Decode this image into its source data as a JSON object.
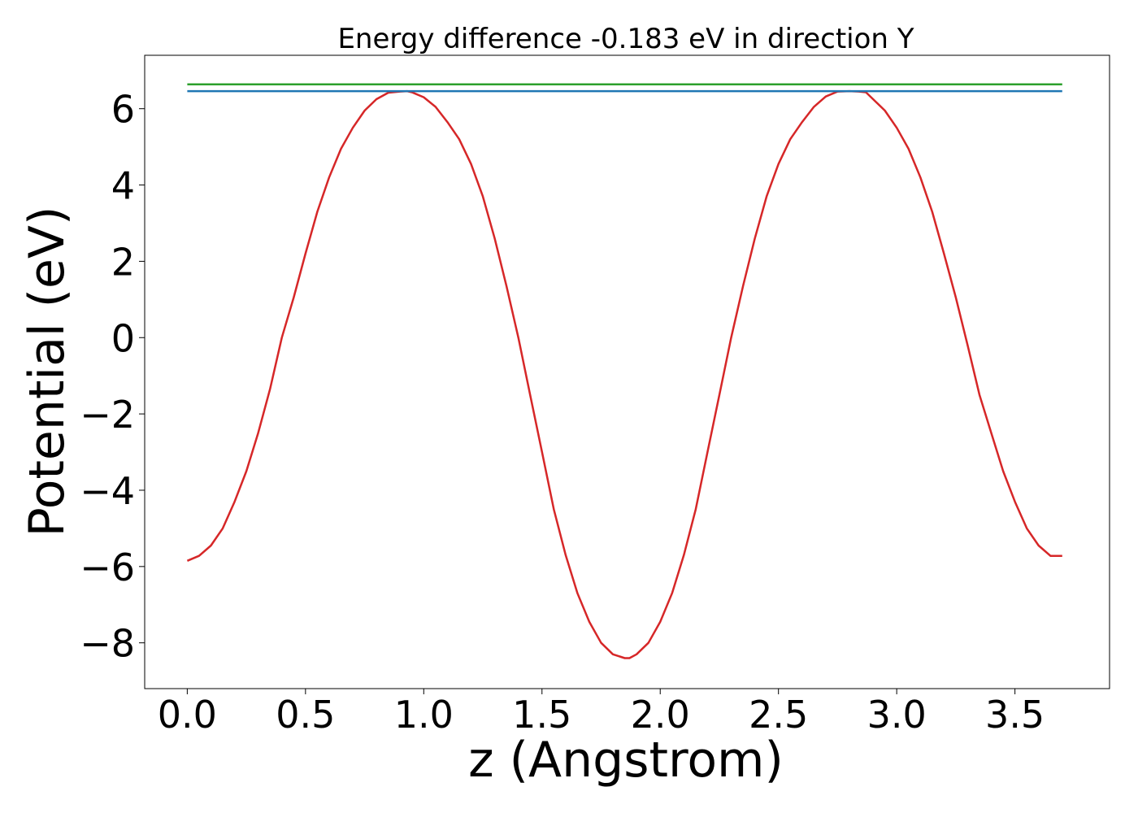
{
  "chart_data": {
    "type": "line",
    "title": "Energy difference -0.183 eV in direction Y",
    "xlabel": "z (Angstrom)",
    "ylabel": "Potential (eV)",
    "xlim": [
      -0.18,
      3.9
    ],
    "ylim": [
      -9.2,
      7.4
    ],
    "xticks": [
      0.0,
      0.5,
      1.0,
      1.5,
      2.0,
      2.5,
      3.0,
      3.5
    ],
    "xtick_labels": [
      "0.0",
      "0.5",
      "1.0",
      "1.5",
      "2.0",
      "2.5",
      "3.0",
      "3.5"
    ],
    "yticks": [
      -8,
      -6,
      -4,
      -2,
      0,
      2,
      4,
      6
    ],
    "ytick_labels": [
      "−8",
      "−6",
      "−4",
      "−2",
      "0",
      "2",
      "4",
      "6"
    ],
    "grid": false,
    "series": [
      {
        "color": "#d62728",
        "x": [
          0.0,
          0.05,
          0.1,
          0.15,
          0.2,
          0.25,
          0.3,
          0.35,
          0.4,
          0.45,
          0.5,
          0.55,
          0.6,
          0.65,
          0.7,
          0.75,
          0.8,
          0.85,
          0.9,
          0.93,
          0.95,
          1.0,
          1.05,
          1.1,
          1.15,
          1.2,
          1.25,
          1.3,
          1.35,
          1.4,
          1.45,
          1.5,
          1.55,
          1.6,
          1.65,
          1.7,
          1.75,
          1.8,
          1.85,
          1.87,
          1.9,
          1.95,
          2.0,
          2.05,
          2.1,
          2.15,
          2.2,
          2.25,
          2.3,
          2.35,
          2.4,
          2.45,
          2.5,
          2.55,
          2.6,
          2.65,
          2.7,
          2.75,
          2.8,
          2.84,
          2.87,
          2.9,
          2.95,
          3.0,
          3.05,
          3.1,
          3.15,
          3.2,
          3.25,
          3.3,
          3.35,
          3.4,
          3.45,
          3.5,
          3.55,
          3.6,
          3.65,
          3.7
        ],
        "y": [
          -5.85,
          -5.72,
          -5.45,
          -5.0,
          -4.3,
          -3.5,
          -2.5,
          -1.35,
          0.0,
          1.05,
          2.2,
          3.3,
          4.2,
          4.95,
          5.5,
          5.95,
          6.25,
          6.42,
          6.45,
          6.46,
          6.43,
          6.3,
          6.05,
          5.65,
          5.2,
          4.55,
          3.7,
          2.6,
          1.35,
          0.0,
          -1.5,
          -3.0,
          -4.5,
          -5.7,
          -6.7,
          -7.45,
          -8.0,
          -8.3,
          -8.4,
          -8.4,
          -8.3,
          -8.0,
          -7.45,
          -6.7,
          -5.7,
          -4.5,
          -3.0,
          -1.5,
          0.0,
          1.35,
          2.6,
          3.7,
          4.55,
          5.2,
          5.65,
          6.05,
          6.32,
          6.45,
          6.46,
          6.45,
          6.43,
          6.25,
          5.95,
          5.5,
          4.95,
          4.2,
          3.3,
          2.2,
          1.05,
          -0.2,
          -1.5,
          -2.5,
          -3.5,
          -4.3,
          -5.0,
          -5.45,
          -5.72,
          -5.72
        ]
      },
      {
        "color": "#1f77b4",
        "x": [
          0.0,
          3.7
        ],
        "y": [
          6.46,
          6.46
        ]
      },
      {
        "color": "#2ca02c",
        "x": [
          0.0,
          3.7
        ],
        "y": [
          6.64,
          6.64
        ]
      }
    ]
  }
}
